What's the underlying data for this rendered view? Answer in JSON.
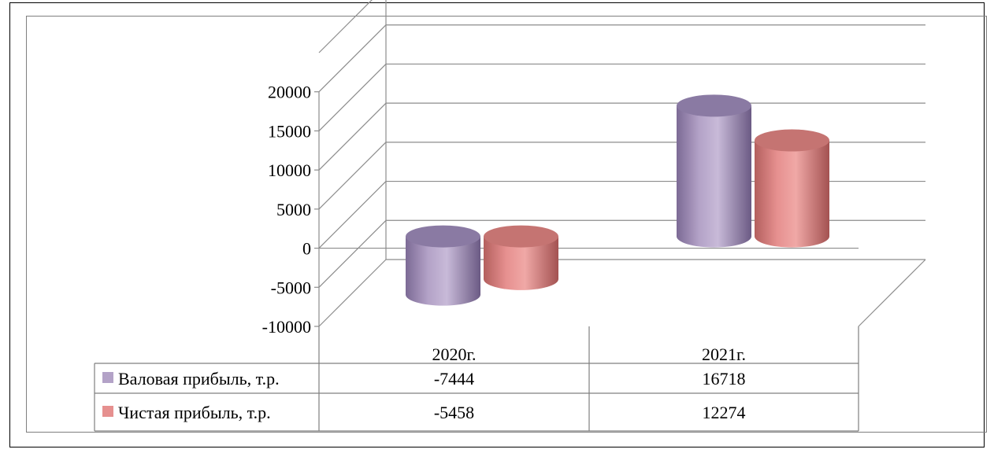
{
  "chart_data": {
    "type": "bar",
    "style": "3d-cylinder",
    "categories": [
      "2020г.",
      "2021г."
    ],
    "series": [
      {
        "name": "Валовая прибыль, т.р.",
        "values": [
          -7444,
          16718
        ],
        "color": "#b3a2c7",
        "legend_key_color": "#b3a2c7"
      },
      {
        "name": "Чистая прибыль, т.р.",
        "values": [
          -5458,
          12274
        ],
        "color": "#e6908f",
        "legend_key_color": "#e6908f"
      }
    ],
    "yticks": [
      20000,
      15000,
      10000,
      5000,
      0,
      -5000,
      -10000
    ],
    "ylim": [
      -10000,
      25000
    ],
    "grid": true,
    "legend": "data-table-below"
  }
}
